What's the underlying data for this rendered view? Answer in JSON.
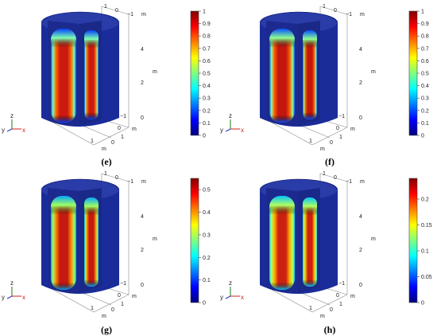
{
  "panels": [
    {
      "caption": "(e)",
      "colorbar": {
        "ticks": [
          "1",
          "0.9",
          "0.8",
          "0.7",
          "0.6",
          "0.5",
          "0.4",
          "0.3",
          "0.2",
          "0.1",
          "0"
        ],
        "range": [
          0,
          1
        ]
      },
      "axis_ticks": {
        "top": [
          "1",
          "0",
          "−1"
        ],
        "right": [
          "4",
          "2",
          "0"
        ],
        "bottom_x": [
          "1",
          "0"
        ],
        "bottom_y": [
          "−1",
          "0",
          "1"
        ],
        "unit": "m"
      },
      "triad": {
        "z": "z",
        "y": "y",
        "x": "x"
      }
    },
    {
      "caption": "(f)",
      "colorbar": {
        "ticks": [
          "1",
          "0.9",
          "0.8",
          "0.7",
          "0.6",
          "0.5",
          "0.4",
          "0.3",
          "0.2",
          "0.1",
          "0"
        ],
        "range": [
          0,
          1
        ]
      },
      "axis_ticks": {
        "top": [
          "1",
          "0",
          "−1"
        ],
        "right": [
          "4",
          "2",
          "0"
        ],
        "bottom_x": [
          "1",
          "0"
        ],
        "bottom_y": [
          "−1",
          "0",
          "1"
        ],
        "unit": "m"
      },
      "triad": {
        "z": "z",
        "y": "y",
        "x": "x"
      }
    },
    {
      "caption": "(g)",
      "colorbar": {
        "ticks": [
          "0.5",
          "0.4",
          "0.3",
          "0.2",
          "0.1",
          "0"
        ],
        "range": [
          0,
          0.55
        ]
      },
      "axis_ticks": {
        "top": [
          "1",
          "0",
          "−1"
        ],
        "right": [
          "4",
          "2",
          "0"
        ],
        "bottom_x": [
          "1",
          "0"
        ],
        "bottom_y": [
          "−1",
          "0",
          "1"
        ],
        "unit": "m"
      },
      "triad": {
        "z": "z",
        "y": "y",
        "x": "x"
      }
    },
    {
      "caption": "(h)",
      "colorbar": {
        "ticks": [
          "0.2",
          "0.15",
          "0.1",
          "0.05",
          "0"
        ],
        "range": [
          0,
          0.24
        ]
      },
      "axis_ticks": {
        "top": [
          "1",
          "0",
          "−1"
        ],
        "right": [
          "4",
          "2",
          "0"
        ],
        "bottom_x": [
          "1",
          "0"
        ],
        "bottom_y": [
          "−1",
          "0",
          "1"
        ],
        "unit": "m"
      },
      "triad": {
        "z": "z",
        "y": "y",
        "x": "x"
      }
    }
  ],
  "colors": {
    "jet": [
      "#00007f",
      "#0000ff",
      "#007fff",
      "#00ffff",
      "#7fff7f",
      "#ffff00",
      "#ff7f00",
      "#ff0000",
      "#7f0000"
    ],
    "cylinder_shell": "#1a2c9a",
    "hot_core": "#c81e14"
  }
}
